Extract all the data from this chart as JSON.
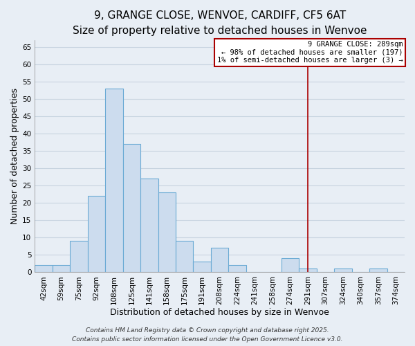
{
  "title": "9, GRANGE CLOSE, WENVOE, CARDIFF, CF5 6AT",
  "subtitle": "Size of property relative to detached houses in Wenvoe",
  "xlabel": "Distribution of detached houses by size in Wenvoe",
  "ylabel": "Number of detached properties",
  "bin_labels": [
    "42sqm",
    "59sqm",
    "75sqm",
    "92sqm",
    "108sqm",
    "125sqm",
    "141sqm",
    "158sqm",
    "175sqm",
    "191sqm",
    "208sqm",
    "224sqm",
    "241sqm",
    "258sqm",
    "274sqm",
    "291sqm",
    "307sqm",
    "324sqm",
    "340sqm",
    "357sqm",
    "374sqm"
  ],
  "bar_heights": [
    2,
    2,
    9,
    22,
    53,
    37,
    27,
    23,
    9,
    3,
    7,
    2,
    0,
    0,
    4,
    1,
    0,
    1,
    0,
    1,
    0
  ],
  "bar_color": "#ccdcee",
  "bar_edge_color": "#6aaad4",
  "background_color": "#e8eef5",
  "grid_color": "#c8d4e0",
  "ylim": [
    0,
    67
  ],
  "yticks": [
    0,
    5,
    10,
    15,
    20,
    25,
    30,
    35,
    40,
    45,
    50,
    55,
    60,
    65
  ],
  "vline_x_index": 15,
  "vline_color": "#aa0000",
  "annotation_title": "9 GRANGE CLOSE: 289sqm",
  "annotation_line1": "← 98% of detached houses are smaller (197)",
  "annotation_line2": "1% of semi-detached houses are larger (3) →",
  "annotation_box_color": "#ffffff",
  "annotation_border_color": "#aa0000",
  "footer_line1": "Contains HM Land Registry data © Crown copyright and database right 2025.",
  "footer_line2": "Contains public sector information licensed under the Open Government Licence v3.0.",
  "title_fontsize": 11,
  "subtitle_fontsize": 9,
  "axis_label_fontsize": 9,
  "tick_fontsize": 7.5,
  "annotation_fontsize": 7.5,
  "footer_fontsize": 6.5
}
